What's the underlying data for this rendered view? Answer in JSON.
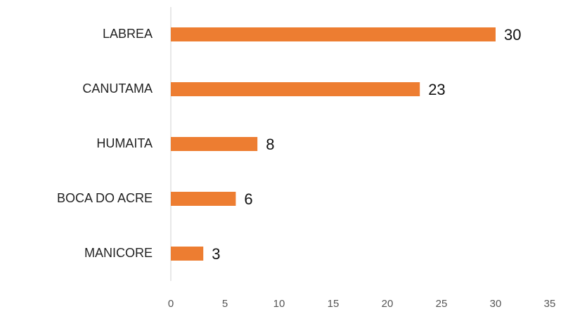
{
  "chart_data": {
    "type": "bar",
    "orientation": "horizontal",
    "categories": [
      "LABREA",
      "CANUTAMA",
      "HUMAITA",
      "BOCA DO ACRE",
      "MANICORE"
    ],
    "values": [
      30,
      23,
      8,
      6,
      3
    ],
    "color": "#ed7d31",
    "xlim": [
      0,
      35
    ],
    "xticks": [
      0,
      5,
      10,
      15,
      20,
      25,
      30,
      35
    ],
    "grid": false
  }
}
